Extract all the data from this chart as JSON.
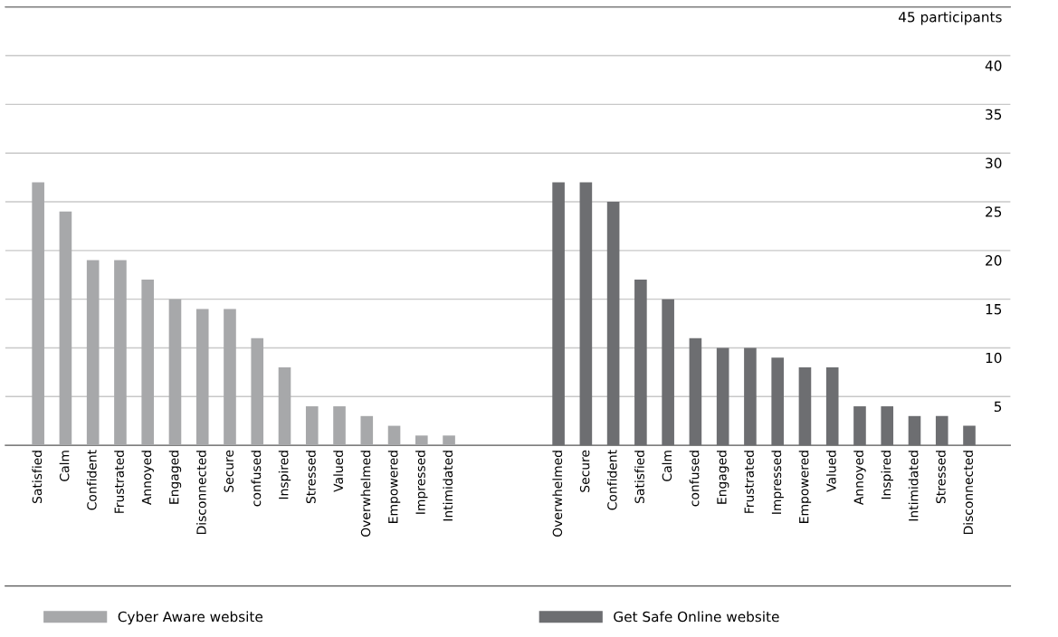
{
  "chart_data": {
    "type": "bar",
    "categories": [
      "Satisfied",
      "Calm",
      "Confident",
      "Frustrated",
      "Annoyed",
      "Engaged",
      "Disconnected",
      "Secure",
      "confused",
      "Inspired",
      "Stressed",
      "Valued",
      "Overwhelmed",
      "Empowered",
      "Impressed",
      "Intimidated",
      null,
      null,
      null,
      "Overwhelmed",
      "Secure",
      "Confident",
      "Satisfied",
      "Calm",
      "confused",
      "Engaged",
      "Frustrated",
      "Impressed",
      "Empowered",
      "Valued",
      "Annoyed",
      "Inspired",
      "Intimidated",
      "Stressed",
      "Disconnected"
    ],
    "series": [
      {
        "name": "Cyber Aware website",
        "color": "#a7a8aa",
        "values": [
          27,
          24,
          19,
          19,
          17,
          15,
          14,
          14,
          11,
          8,
          4,
          4,
          3,
          2,
          1,
          1,
          null,
          null,
          null,
          null,
          null,
          null,
          null,
          null,
          null,
          null,
          null,
          null,
          null,
          null,
          null,
          null,
          null,
          null,
          null
        ]
      },
      {
        "name": "Get Safe Online website",
        "color": "#6d6e71",
        "values": [
          null,
          null,
          null,
          null,
          null,
          null,
          null,
          null,
          null,
          null,
          null,
          null,
          null,
          null,
          null,
          null,
          null,
          null,
          null,
          27,
          27,
          25,
          17,
          15,
          11,
          10,
          10,
          9,
          8,
          8,
          4,
          4,
          3,
          3,
          2
        ]
      }
    ],
    "ylim": [
      0,
      45
    ],
    "yticks": [
      5,
      10,
      15,
      20,
      25,
      30,
      35,
      40,
      {
        "value": 45,
        "label": "45 participants"
      }
    ],
    "grid": "y",
    "legend": "bottom"
  }
}
